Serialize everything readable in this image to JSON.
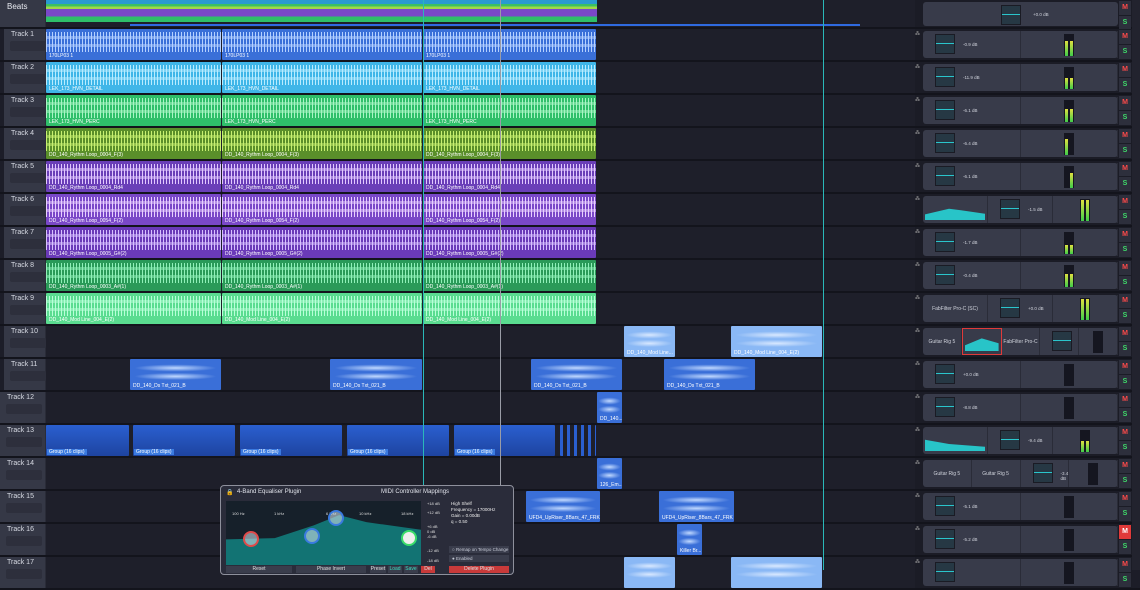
{
  "beats": {
    "name": "Beats",
    "db": "+0.0 dB"
  },
  "tracks": [
    {
      "name": "Track 1",
      "color": "#3a6fd8",
      "wave": "#b5d0ff",
      "clips": [
        {
          "label": "170LP03 1"
        },
        {
          "label": "170LP03 1"
        },
        {
          "label": "170LP03 1"
        }
      ],
      "mixer": {
        "db": "-0.9 dB",
        "meter": [
          0.7,
          0.7
        ]
      }
    },
    {
      "name": "Track 2",
      "color": "#3fb6e8",
      "wave": "#b8ecff",
      "clips": [
        {
          "label": "LEK_173_HVN_DETAIL"
        },
        {
          "label": "LEK_173_HVN_DETAIL"
        },
        {
          "label": "LEK_173_HVN_DETAIL"
        }
      ],
      "mixer": {
        "db": "-11.9 dB",
        "meter": [
          0.5,
          0.5
        ]
      }
    },
    {
      "name": "Track 3",
      "color": "#2fbf6a",
      "wave": "#a8f5c4",
      "clips": [
        {
          "label": "LEK_173_HVN_PERC"
        },
        {
          "label": "LEK_173_HVN_PERC"
        },
        {
          "label": "LEK_173_HVN_PERC"
        }
      ],
      "mixer": {
        "db": "-6.1 dB",
        "meter": [
          0.6,
          0.6
        ]
      }
    },
    {
      "name": "Track 4",
      "color": "#5a8f2a",
      "wave": "#c8f070",
      "clips": [
        {
          "label": "DD_140_Rythm Loop_0004_F(3)"
        },
        {
          "label": "DD_140_Rythm Loop_0004_F(3)"
        },
        {
          "label": "DD_140_Rythm Loop_0004_F(3)"
        }
      ],
      "mixer": {
        "db": "-6.4 dB",
        "meter": [
          0.75,
          0
        ]
      }
    },
    {
      "name": "Track 5",
      "color": "#6a3fb8",
      "wave": "#e2c8ff",
      "clips": [
        {
          "label": "DD_140_Rythm Loop_0004_Rd4"
        },
        {
          "label": "DD_140_Rythm Loop_0004_Rd4"
        },
        {
          "label": "DD_140_Rythm Loop_0004_Rd4"
        }
      ],
      "mixer": {
        "db": "-6.1 dB",
        "meter": [
          0,
          0.7
        ]
      }
    },
    {
      "name": "Track 6",
      "color": "#7a48c8",
      "wave": "#e8d0ff",
      "clips": [
        {
          "label": "DD_140_Rythm Loop_0054_F(2)"
        },
        {
          "label": "DD_140_Rythm Loop_0054_F(2)"
        },
        {
          "label": "DD_140_Rythm Loop_0054_F(2)"
        }
      ],
      "mixer": {
        "eq": true,
        "db": "-1.5 dB",
        "meter": [
          0.95,
          0.95
        ]
      }
    },
    {
      "name": "Track 7",
      "color": "#6a3ab8",
      "wave": "#d8c0ff",
      "clips": [
        {
          "label": "DD_140_Rythm Loop_0005_G#(2)"
        },
        {
          "label": "DD_140_Rythm Loop_0005_G#(2)"
        },
        {
          "label": "DD_140_Rythm Loop_0005_G#(2)"
        }
      ],
      "mixer": {
        "db": "-1.7 dB",
        "meter": [
          0.4,
          0.4
        ]
      }
    },
    {
      "name": "Track 8",
      "color": "#2a9a58",
      "wave": "#90f0b8",
      "clips": [
        {
          "label": "DD_140_Rythm Loop_0003_A#(1)"
        },
        {
          "label": "DD_140_Rythm Loop_0003_A#(1)"
        },
        {
          "label": "DD_140_Rythm Loop_0003_A#(1)"
        }
      ],
      "mixer": {
        "db": "-0.4 dB",
        "meter": [
          0.6,
          0.6
        ]
      }
    },
    {
      "name": "Track 9",
      "color": "#5adc90",
      "wave": "#b8ffd8",
      "clips": [
        {
          "label": "DD_140_Mod Line_004_E(2)"
        },
        {
          "label": "DD_140_Mod Line_004_E(2)"
        },
        {
          "label": "DD_140_Mod Line_004_E(2)"
        }
      ],
      "mixer": {
        "plugins": [
          "FabFilter Pro-C (SC)"
        ],
        "db": "+0.0 dB",
        "meter": [
          0.95,
          0.95
        ]
      }
    },
    {
      "name": "Track 10",
      "color": "#8ab8f5",
      "wave": "#d8e8ff",
      "clips": [
        {
          "label": "DD_140_Mod Line..."
        },
        {
          "label": "DD_140_Mod Line_004_E(2)"
        }
      ],
      "mixer": {
        "plugins": [
          "Guitar Rig 5",
          "EQ",
          "FabFilter Pro-C"
        ],
        "db": "",
        "meter": [
          0,
          0
        ]
      }
    },
    {
      "name": "Track 11",
      "color": "#3a6fd8",
      "wave": "#c0d8ff",
      "clips": [
        {
          "label": "DD_140_Ds Txt_021_B"
        },
        {
          "label": "DD_140_Ds Txt_021_B"
        },
        {
          "label": "DD_140_Ds Txt_021_B"
        },
        {
          "label": "DD_140_Ds Txt_021_B"
        }
      ],
      "mixer": {
        "db": "+0.0 dB",
        "meter": [
          0,
          0
        ]
      }
    },
    {
      "name": "Track 12",
      "color": "#3a6fd8",
      "wave": "#c0d8ff",
      "clips": [
        {
          "label": "DD_140..."
        }
      ],
      "mixer": {
        "db": "-8.8 dB",
        "meter": [
          0,
          0
        ]
      }
    },
    {
      "name": "Track 13",
      "color": "#2a5fd0",
      "wave": "",
      "clips": [
        {
          "label": "Group (16 clips)"
        },
        {
          "label": "Group (16 clips)"
        },
        {
          "label": "Group (16 clips)"
        },
        {
          "label": "Group (16 clips)"
        },
        {
          "label": "Group (16 clips)"
        },
        {
          "label": ""
        }
      ],
      "mixer": {
        "eq": true,
        "db": "-9.4 dB",
        "meter": [
          0.5,
          0.5
        ]
      }
    },
    {
      "name": "Track 14",
      "color": "#3a6fd8",
      "wave": "#c0d8ff",
      "clips": [
        {
          "label": "126_Em..."
        }
      ],
      "mixer": {
        "plugins": [
          "Guitar Rig 5",
          "Guitar Rig 5"
        ],
        "db": "-3.4 dB",
        "meter": [
          0,
          0
        ]
      }
    },
    {
      "name": "Track 15",
      "color": "#3a6fd8",
      "wave": "#c0d8ff",
      "clips": [
        {
          "label": "UFD4_UpRiser_8Bars_47_FRK"
        },
        {
          "label": "UFD4_UpRiser_8Bars_47_FRK"
        }
      ],
      "mixer": {
        "db": "-5.1 dB",
        "meter": [
          0,
          0
        ]
      }
    },
    {
      "name": "Track 16",
      "color": "#3a6fd8",
      "wave": "#c0d8ff",
      "clips": [
        {
          "label": "Killer Br..."
        }
      ],
      "mixer": {
        "db": "-5.2 dB",
        "meter": [
          0,
          0
        ],
        "muted": true
      }
    },
    {
      "name": "Track 17",
      "color": "#8ab8f5",
      "wave": "#d8e8ff",
      "clips": [
        {
          "label": ""
        },
        {
          "label": ""
        }
      ],
      "mixer": {
        "db": "",
        "meter": [
          0,
          0
        ]
      }
    }
  ],
  "mute_label": "M",
  "solo_label": "S",
  "plugin": {
    "title": "4-Band Equaliser Plugin",
    "midi": "MIDI Controller Mappings",
    "freqs": [
      "100 Hz",
      "1 kHz",
      "6 kHz",
      "10 kHz",
      "18 kHz"
    ],
    "gains": [
      "+18 dB",
      "+12 dB",
      "+6 dB",
      "0 dB",
      "-6 dB",
      "-12 dB",
      "-18 dB"
    ],
    "info": [
      "High Shelf",
      "Frequency = 17000Hz",
      "Gain = 0.00dB",
      "q = 0.50"
    ],
    "remap": "Remap on Tempo Change",
    "enabled": "Enabled",
    "reset": "Reset",
    "phase": "Phase Invert",
    "preset": "Preset",
    "load": "Load",
    "save": "Save",
    "del": "Del",
    "delete": "Delete Plugin"
  }
}
